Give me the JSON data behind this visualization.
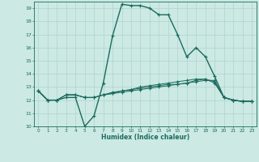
{
  "xlabel": "Humidex (Indice chaleur)",
  "xlim": [
    -0.5,
    23.5
  ],
  "ylim": [
    10,
    19.5
  ],
  "yticks": [
    10,
    11,
    12,
    13,
    14,
    15,
    16,
    17,
    18,
    19
  ],
  "xticks": [
    0,
    1,
    2,
    3,
    4,
    5,
    6,
    7,
    8,
    9,
    10,
    11,
    12,
    13,
    14,
    15,
    16,
    17,
    18,
    19,
    20,
    21,
    22,
    23
  ],
  "bg_color": "#cce9e4",
  "line_color": "#1a6b5e",
  "grid_color": "#afd4ce",
  "lines": [
    {
      "x": [
        0,
        1,
        2,
        3,
        4,
        5,
        6,
        7,
        8,
        9,
        10,
        11,
        12,
        13,
        14,
        15,
        16,
        17,
        18,
        19,
        20,
        21,
        22,
        23
      ],
      "y": [
        12.7,
        12.0,
        12.0,
        12.2,
        12.2,
        10.0,
        10.8,
        13.3,
        16.9,
        19.3,
        19.2,
        19.2,
        19.0,
        18.5,
        18.5,
        17.0,
        15.3,
        16.0,
        15.3,
        13.8,
        12.2,
        12.0,
        11.9,
        11.9
      ]
    },
    {
      "x": [
        0,
        1,
        2,
        3,
        4,
        5,
        6,
        7,
        8,
        9,
        10,
        11,
        12,
        13,
        14,
        15,
        16,
        17,
        18,
        19,
        20,
        21,
        22,
        23
      ],
      "y": [
        12.7,
        12.0,
        12.0,
        12.4,
        12.4,
        12.2,
        12.2,
        12.4,
        12.6,
        12.7,
        12.8,
        12.9,
        13.0,
        13.1,
        13.2,
        13.2,
        13.3,
        13.4,
        13.5,
        13.5,
        12.2,
        12.0,
        11.9,
        11.9
      ]
    },
    {
      "x": [
        0,
        1,
        2,
        3,
        4,
        5,
        6,
        7,
        8,
        9,
        10,
        11,
        12,
        13,
        14,
        15,
        16,
        17,
        18,
        19,
        20,
        21,
        22,
        23
      ],
      "y": [
        12.7,
        12.0,
        12.0,
        12.4,
        12.4,
        12.2,
        12.2,
        12.4,
        12.5,
        12.6,
        12.7,
        12.8,
        12.9,
        13.0,
        13.1,
        13.2,
        13.3,
        13.5,
        13.6,
        13.4,
        12.2,
        12.0,
        11.9,
        11.9
      ]
    },
    {
      "x": [
        0,
        1,
        2,
        3,
        4,
        5,
        6,
        7,
        8,
        9,
        10,
        11,
        12,
        13,
        14,
        15,
        16,
        17,
        18,
        19,
        20,
        21,
        22,
        23
      ],
      "y": [
        12.7,
        12.0,
        12.0,
        12.4,
        12.4,
        12.2,
        12.2,
        12.4,
        12.5,
        12.7,
        12.8,
        13.0,
        13.1,
        13.2,
        13.3,
        13.4,
        13.5,
        13.6,
        13.6,
        13.3,
        12.2,
        12.0,
        11.9,
        11.9
      ]
    }
  ]
}
